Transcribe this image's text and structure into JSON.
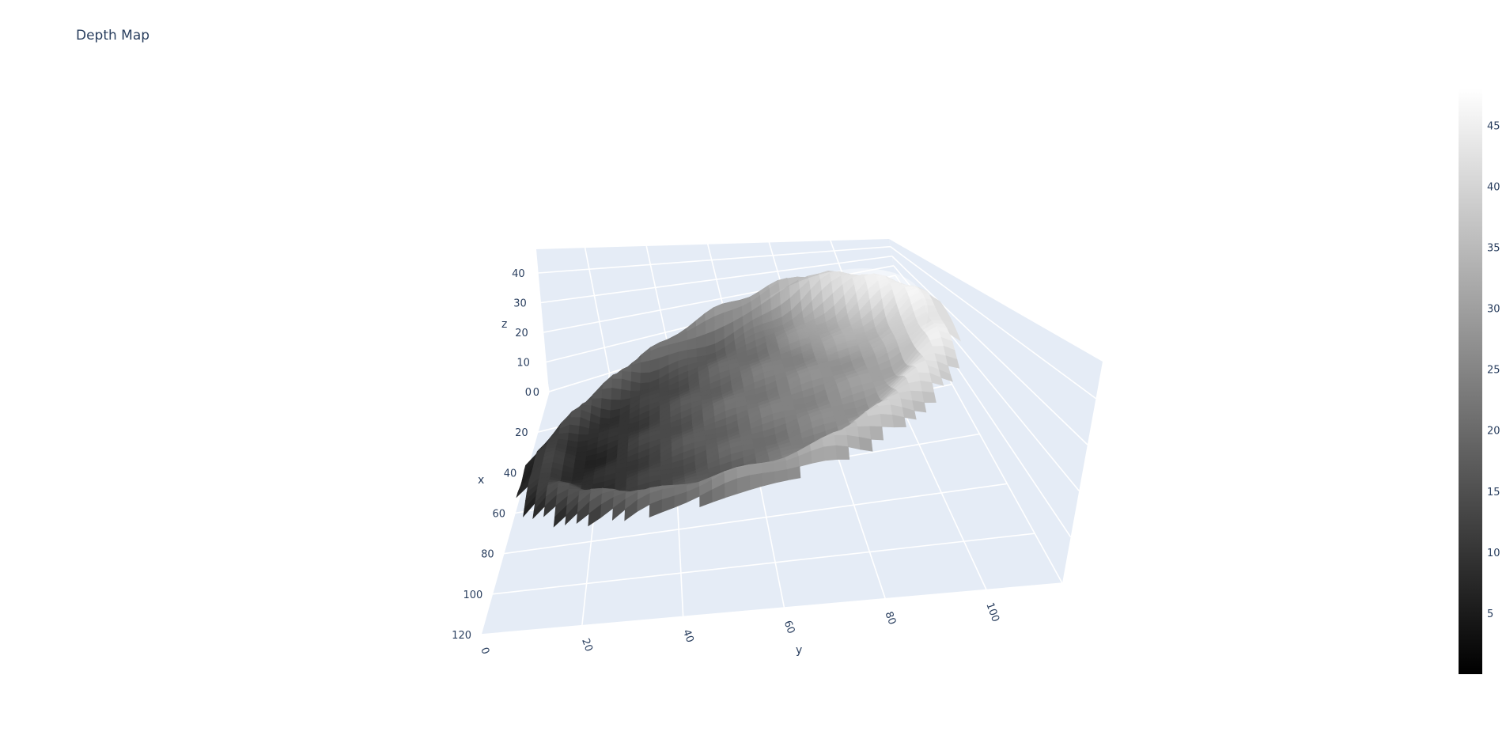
{
  "chart_data": {
    "type": "surface",
    "title": "Depth Map",
    "colorscale": "greys",
    "x_axis": {
      "label": "x",
      "ticks": [
        "0",
        "20",
        "40",
        "60",
        "80",
        "100",
        "120"
      ],
      "range": [
        0,
        120
      ]
    },
    "y_axis": {
      "label": "y",
      "ticks": [
        "0",
        "20",
        "40",
        "60",
        "80",
        "100"
      ],
      "range": [
        0,
        115
      ]
    },
    "z_axis": {
      "label": "z",
      "ticks": [
        "0",
        "10",
        "20",
        "30",
        "40"
      ],
      "range": [
        0,
        48
      ]
    },
    "colorbar": {
      "ticks": [
        "5",
        "10",
        "15",
        "20",
        "25",
        "30",
        "35",
        "40",
        "45"
      ],
      "range": [
        0,
        48
      ]
    },
    "surface": {
      "shape": "ellipsoidal dish",
      "x_extent": [
        10,
        90
      ],
      "y_extent": [
        0,
        110
      ],
      "z_range": [
        0,
        48
      ]
    }
  }
}
